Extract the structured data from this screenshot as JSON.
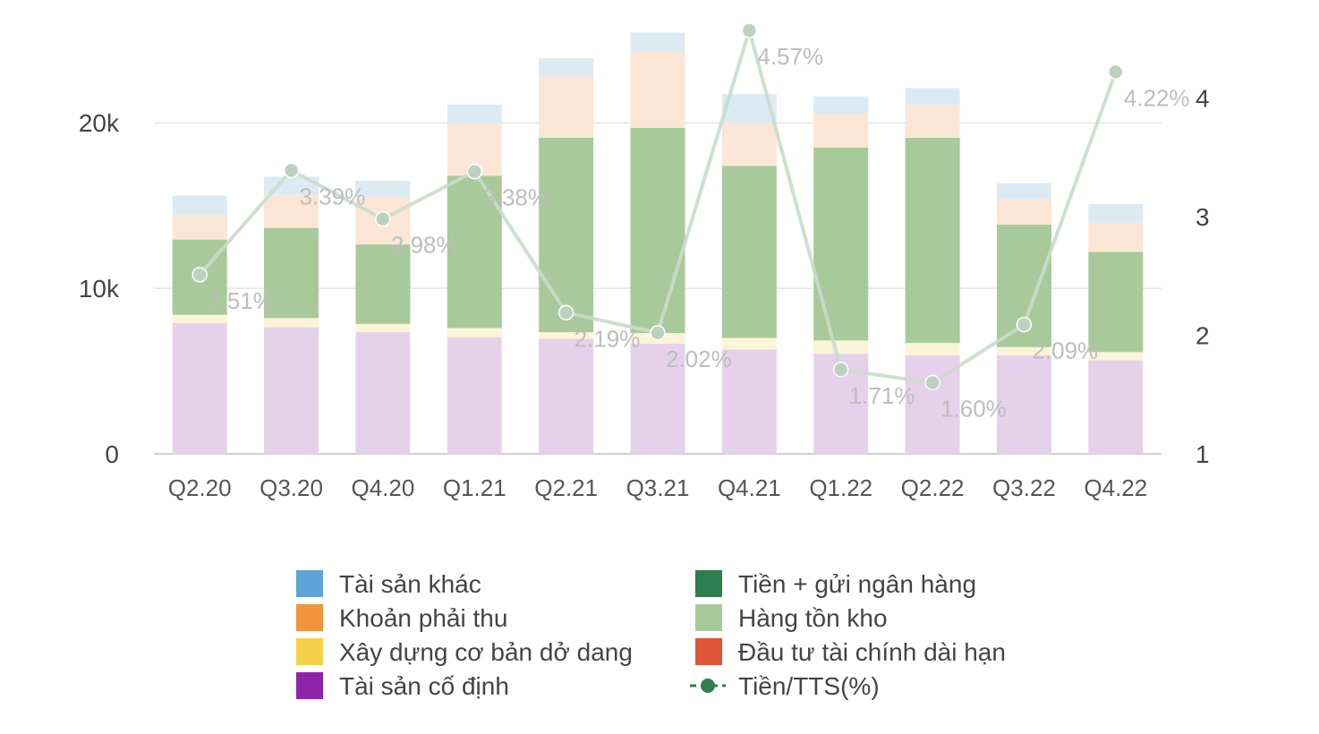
{
  "chart_data": {
    "type": "bar",
    "stacked": true,
    "categories": [
      "Q2.20",
      "Q3.20",
      "Q4.20",
      "Q1.21",
      "Q2.21",
      "Q3.21",
      "Q4.21",
      "Q1.22",
      "Q2.22",
      "Q3.22",
      "Q4.22"
    ],
    "ylim": [
      0,
      25800
    ],
    "y_ticks": [
      {
        "value": 0,
        "label": "0"
      },
      {
        "value": 10000,
        "label": "10k"
      },
      {
        "value": 20000,
        "label": "20k"
      }
    ],
    "y2lim": [
      1,
      4.6
    ],
    "y2_ticks": [
      {
        "value": 1,
        "label": "1"
      },
      {
        "value": 2,
        "label": "2"
      },
      {
        "value": 3,
        "label": "3"
      },
      {
        "value": 4,
        "label": "4"
      }
    ],
    "grid": true,
    "legend_position": "bottom",
    "series": [
      {
        "name": "Tài sản cố định",
        "color": "#8e24aa",
        "fill": "#e6d1eb",
        "values": [
          7900,
          7650,
          7350,
          7050,
          6950,
          6650,
          6300,
          6050,
          5950,
          5950,
          5650
        ]
      },
      {
        "name": "Xây dựng cơ bản dở dang",
        "color": "#f7d04a",
        "fill": "#fcf4d8",
        "values": [
          500,
          550,
          500,
          550,
          400,
          650,
          700,
          800,
          750,
          500,
          500
        ]
      },
      {
        "name": "Tiền + gửi ngân hàng",
        "color": "#2e7d4f",
        "fill": "#c9e0cf",
        "values": [
          0,
          0,
          0,
          0,
          0,
          0,
          0,
          0,
          0,
          0,
          0
        ]
      },
      {
        "name": "Hàng tồn kho",
        "color": "#a8c99a",
        "fill": "#a8c99a",
        "values": [
          4550,
          5450,
          4800,
          9200,
          11750,
          12400,
          10400,
          11650,
          12400,
          7400,
          6050
        ]
      },
      {
        "name": "Khoản phải thu",
        "color": "#f0933a",
        "fill": "#fbe6d6",
        "values": [
          1500,
          2000,
          2850,
          3150,
          3700,
          4600,
          2600,
          2050,
          2000,
          1550,
          1750
        ]
      },
      {
        "name": "Đầu tư tài chính dài hạn",
        "color": "#e05538",
        "fill": "#f6dcd6",
        "values": [
          0,
          0,
          0,
          0,
          0,
          0,
          0,
          0,
          0,
          0,
          0
        ]
      },
      {
        "name": "Tài sản khác",
        "color": "#5ea4d8",
        "fill": "#dceaf3",
        "values": [
          1150,
          1100,
          1000,
          1150,
          1100,
          1150,
          1750,
          1050,
          1000,
          950,
          1150
        ]
      }
    ],
    "line_series": {
      "name": "Tiền/TTS(%)",
      "color": "#2e7d4f",
      "line_color": "#c9dccb",
      "point_color": "#bcd2bf",
      "values": [
        2.51,
        3.39,
        2.98,
        3.38,
        2.19,
        2.02,
        4.57,
        1.71,
        1.6,
        2.09,
        4.22
      ],
      "labels": [
        "2.51%",
        "3.39%",
        "2.98%",
        "3.38%",
        "2.19%",
        "2.02%",
        "4.57%",
        "1.71%",
        "1.60%",
        "2.09%",
        "4.22%"
      ]
    }
  }
}
